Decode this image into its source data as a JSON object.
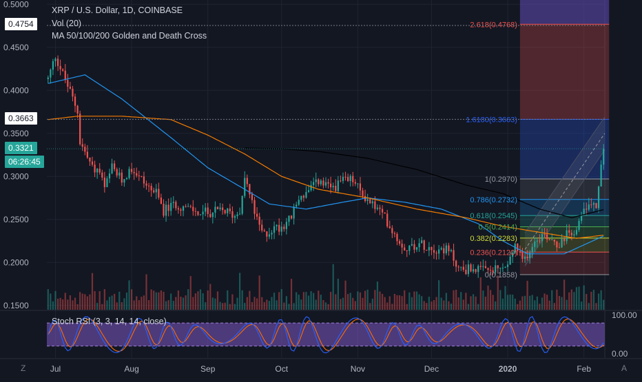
{
  "header": {
    "symbol_line": "XRP / U.S. Dollar, 1D, COINBASE",
    "volume_label": "Vol (20)",
    "ma_label": "MA 50/100/200 Golden and Death Cross",
    "stoch_label": "Stoch RSI (3, 3, 14, 14, close)"
  },
  "colors": {
    "background": "#131722",
    "up": "#26a69a",
    "down": "#ef5350",
    "ma50": "#2196f3",
    "ma100": "#f57c00",
    "ma200": "#000000",
    "stoch_k": "#2962ff",
    "stoch_d": "#ff6d00",
    "stoch_band": "#7e57c2"
  },
  "price_boxes": [
    {
      "label": "0.4754",
      "value": 0.4754,
      "bg": "#ffffff",
      "fg": "#131722"
    },
    {
      "label": "0.3663",
      "value": 0.3663,
      "bg": "#ffffff",
      "fg": "#131722"
    },
    {
      "label": "0.3321",
      "value": 0.3321,
      "bg": "#26a69a",
      "fg": "#ffffff"
    },
    {
      "label": "06:26:45",
      "value": 0.3045,
      "bg": "#26a69a",
      "fg": "#ffffff"
    }
  ],
  "bottom_bar": {
    "left_label": "Z",
    "right_label": "A"
  },
  "chart_data": {
    "type": "candlestick",
    "title": "XRP / U.S. Dollar, 1D, COINBASE",
    "ylim": [
      0.145,
      0.505
    ],
    "price_ticks": [
      "0.5000",
      "0.4500",
      "0.4000",
      "0.3500",
      "0.3000",
      "0.2500",
      "0.2000",
      "0.1500"
    ],
    "price_tick_values": [
      0.5,
      0.45,
      0.4,
      0.35,
      0.3,
      0.25,
      0.2,
      0.15
    ],
    "x_labels": [
      "Jul",
      "Aug",
      "Sep",
      "Oct",
      "Nov",
      "Dec",
      "2020",
      "Feb"
    ],
    "x_label_days": [
      3,
      34,
      65,
      95,
      126,
      156,
      187,
      218
    ],
    "day_count": 227,
    "close_waypoints": [
      [
        0,
        0.413
      ],
      [
        3,
        0.44
      ],
      [
        8,
        0.405
      ],
      [
        12,
        0.376
      ],
      [
        13,
        0.34
      ],
      [
        18,
        0.31
      ],
      [
        21,
        0.305
      ],
      [
        23,
        0.285
      ],
      [
        26,
        0.31
      ],
      [
        30,
        0.295
      ],
      [
        34,
        0.31
      ],
      [
        40,
        0.29
      ],
      [
        44,
        0.28
      ],
      [
        47,
        0.26
      ],
      [
        52,
        0.268
      ],
      [
        57,
        0.262
      ],
      [
        61,
        0.258
      ],
      [
        65,
        0.258
      ],
      [
        72,
        0.26
      ],
      [
        76,
        0.254
      ],
      [
        78,
        0.262
      ],
      [
        80,
        0.3
      ],
      [
        83,
        0.268
      ],
      [
        86,
        0.24
      ],
      [
        88,
        0.232
      ],
      [
        92,
        0.24
      ],
      [
        95,
        0.242
      ],
      [
        99,
        0.253
      ],
      [
        102,
        0.275
      ],
      [
        106,
        0.282
      ],
      [
        110,
        0.295
      ],
      [
        113,
        0.288
      ],
      [
        116,
        0.287
      ],
      [
        120,
        0.294
      ],
      [
        124,
        0.296
      ],
      [
        127,
        0.282
      ],
      [
        130,
        0.273
      ],
      [
        134,
        0.262
      ],
      [
        137,
        0.252
      ],
      [
        140,
        0.238
      ],
      [
        143,
        0.224
      ],
      [
        146,
        0.216
      ],
      [
        150,
        0.222
      ],
      [
        154,
        0.22
      ],
      [
        157,
        0.216
      ],
      [
        161,
        0.216
      ],
      [
        164,
        0.21
      ],
      [
        167,
        0.193
      ],
      [
        170,
        0.192
      ],
      [
        173,
        0.194
      ],
      [
        176,
        0.19
      ],
      [
        180,
        0.19
      ],
      [
        184,
        0.192
      ],
      [
        187,
        0.196
      ],
      [
        190,
        0.22
      ],
      [
        193,
        0.2
      ],
      [
        196,
        0.215
      ],
      [
        199,
        0.23
      ],
      [
        202,
        0.232
      ],
      [
        205,
        0.228
      ],
      [
        208,
        0.22
      ],
      [
        211,
        0.232
      ],
      [
        214,
        0.238
      ],
      [
        217,
        0.252
      ],
      [
        220,
        0.27
      ],
      [
        223,
        0.268
      ],
      [
        224,
        0.285
      ],
      [
        225,
        0.31
      ],
      [
        226,
        0.332
      ]
    ],
    "moving_averages": [
      {
        "name": "MA 50",
        "color": "#2196f3",
        "points": [
          [
            0,
            0.408
          ],
          [
            15,
            0.418
          ],
          [
            30,
            0.39
          ],
          [
            50,
            0.345
          ],
          [
            65,
            0.31
          ],
          [
            80,
            0.285
          ],
          [
            90,
            0.268
          ],
          [
            105,
            0.262
          ],
          [
            120,
            0.27
          ],
          [
            130,
            0.275
          ],
          [
            145,
            0.27
          ],
          [
            160,
            0.262
          ],
          [
            175,
            0.245
          ],
          [
            185,
            0.225
          ],
          [
            195,
            0.21
          ],
          [
            210,
            0.21
          ],
          [
            227,
            0.232
          ]
        ]
      },
      {
        "name": "MA 100",
        "color": "#f57c00",
        "points": [
          [
            0,
            0.366
          ],
          [
            12,
            0.37
          ],
          [
            30,
            0.37
          ],
          [
            50,
            0.366
          ],
          [
            65,
            0.348
          ],
          [
            80,
            0.326
          ],
          [
            95,
            0.3
          ],
          [
            110,
            0.285
          ],
          [
            130,
            0.275
          ],
          [
            150,
            0.262
          ],
          [
            170,
            0.252
          ],
          [
            185,
            0.242
          ],
          [
            200,
            0.235
          ],
          [
            215,
            0.228
          ],
          [
            227,
            0.232
          ]
        ]
      },
      {
        "name": "MA 200",
        "color": "#000000",
        "points": [
          [
            80,
            0.333
          ],
          [
            95,
            0.332
          ],
          [
            110,
            0.329
          ],
          [
            130,
            0.321
          ],
          [
            150,
            0.308
          ],
          [
            170,
            0.29
          ],
          [
            185,
            0.28
          ],
          [
            200,
            0.262
          ],
          [
            213,
            0.252
          ],
          [
            227,
            0.262
          ]
        ]
      }
    ],
    "fibonacci": {
      "start_day": 192,
      "end_day": 228,
      "levels": [
        {
          "label": "2.618(0.4768)",
          "value": 0.4768,
          "color": "#ef5350",
          "fill": "rgba(239,83,80,0.28)"
        },
        {
          "label": "1.6180(0.3663)",
          "value": 0.3663,
          "color": "#2962ff",
          "fill": "rgba(41,98,255,0.26)"
        },
        {
          "label": "1(0.2970)",
          "value": 0.297,
          "color": "#9598a1",
          "fill": "rgba(120,123,134,0.22)"
        },
        {
          "label": "0.786(0.2732)",
          "value": 0.2732,
          "color": "#2196f3",
          "fill": "rgba(33,150,243,0.22)"
        },
        {
          "label": "0.618(0.2545)",
          "value": 0.2545,
          "color": "#26a69a",
          "fill": "rgba(38,166,154,0.22)"
        },
        {
          "label": "0.5(0.2414)",
          "value": 0.2414,
          "color": "#4caf50",
          "fill": "rgba(76,175,80,0.22)"
        },
        {
          "label": "0.382(0.2283)",
          "value": 0.2283,
          "color": "#cddc39",
          "fill": "rgba(205,220,57,0.18)"
        },
        {
          "label": "0.236(0.2120)",
          "value": 0.212,
          "color": "#ef5350",
          "fill": "rgba(239,83,80,0.18)"
        },
        {
          "label": "0(0.1858)",
          "value": 0.1858,
          "color": "#9598a1",
          "fill": "rgba(120,123,134,0.12)"
        }
      ]
    },
    "stoch_rsi": {
      "ticks": [
        "100.00",
        "0.00"
      ],
      "tick_values": [
        100,
        0
      ],
      "band": [
        20,
        80
      ]
    }
  }
}
